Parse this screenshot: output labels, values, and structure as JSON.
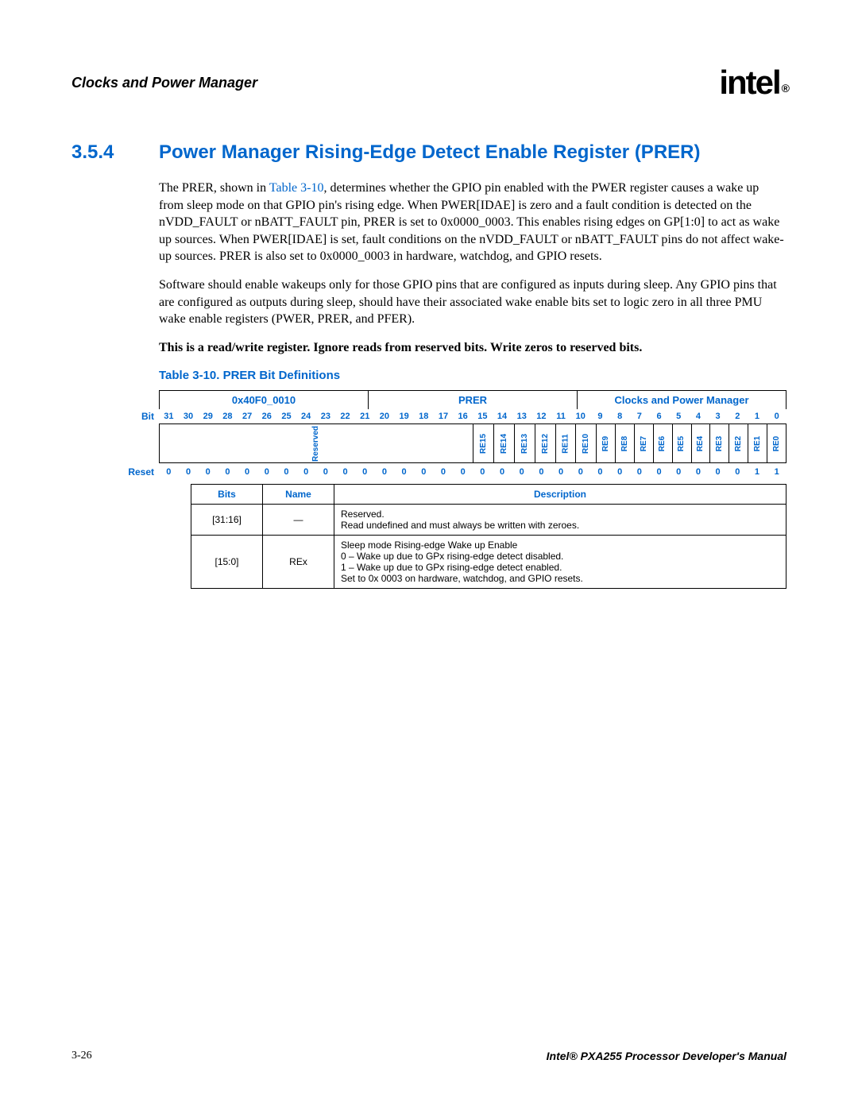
{
  "header": {
    "title": "Clocks and Power Manager",
    "logo_text": "intel",
    "logo_r": "®"
  },
  "section": {
    "number": "3.5.4",
    "title": "Power Manager Rising-Edge Detect Enable Register (PRER)"
  },
  "paragraphs": {
    "p1a": "The PRER, shown in ",
    "p1link": "Table 3-10",
    "p1b": ", determines whether the GPIO pin enabled with the PWER register causes a wake up from sleep mode on that GPIO pin's rising edge. When PWER[IDAE] is zero and a fault condition is detected on the nVDD_FAULT or nBATT_FAULT pin, PRER is set to 0x0000_0003. This enables rising edges on GP[1:0] to act as wake up sources. When PWER[IDAE] is set, fault conditions on the nVDD_FAULT or nBATT_FAULT pins do not affect wake-up sources. PRER is also set to 0x0000_0003 in hardware, watchdog, and GPIO resets.",
    "p2": "Software should enable wakeups only for those GPIO pins that are configured as inputs during sleep. Any GPIO pins that are configured as outputs during sleep, should have their associated wake enable bits set to logic zero in all three PMU wake enable registers (PWER, PRER, and PFER).",
    "p3": "This is a read/write register. Ignore reads from reserved bits. Write zeros to reserved bits."
  },
  "table": {
    "caption": "Table 3-10. PRER Bit Definitions",
    "address": "0x40F0_0010",
    "reg_name": "PRER",
    "module": "Clocks and Power Manager",
    "bit_label": "Bit",
    "reset_label": "Reset",
    "bits": [
      "31",
      "30",
      "29",
      "28",
      "27",
      "26",
      "25",
      "24",
      "23",
      "22",
      "21",
      "20",
      "19",
      "18",
      "17",
      "16",
      "15",
      "14",
      "13",
      "12",
      "11",
      "10",
      "9",
      "8",
      "7",
      "6",
      "5",
      "4",
      "3",
      "2",
      "1",
      "0"
    ],
    "reserved_label": "Reserved",
    "re_labels": [
      "RE15",
      "RE14",
      "RE13",
      "RE12",
      "RE11",
      "RE10",
      "RE9",
      "RE8",
      "RE7",
      "RE6",
      "RE5",
      "RE4",
      "RE3",
      "RE2",
      "RE1",
      "RE0"
    ],
    "reset_values": [
      "0",
      "0",
      "0",
      "0",
      "0",
      "0",
      "0",
      "0",
      "0",
      "0",
      "0",
      "0",
      "0",
      "0",
      "0",
      "0",
      "0",
      "0",
      "0",
      "0",
      "0",
      "0",
      "0",
      "0",
      "0",
      "0",
      "0",
      "0",
      "0",
      "0",
      "1",
      "1"
    ],
    "desc_headers": {
      "bits": "Bits",
      "name": "Name",
      "desc": "Description"
    },
    "rows": [
      {
        "bits": "[31:16]",
        "name": "—",
        "desc_l1": "Reserved.",
        "desc_l2": "Read undefined and must always be written with zeroes."
      },
      {
        "bits": "[15:0]",
        "name": "REx",
        "desc_l1": "Sleep mode Rising-edge Wake up Enable",
        "desc_l2": "0 –  Wake up due to GPx rising-edge detect disabled.",
        "desc_l3": "1 –  Wake up due to GPx rising-edge detect enabled.",
        "desc_l4": "Set to 0x 0003 on hardware, watchdog, and GPIO resets."
      }
    ]
  },
  "footer": {
    "page": "3-26",
    "manual": "Intel® PXA255 Processor Developer's Manual"
  }
}
